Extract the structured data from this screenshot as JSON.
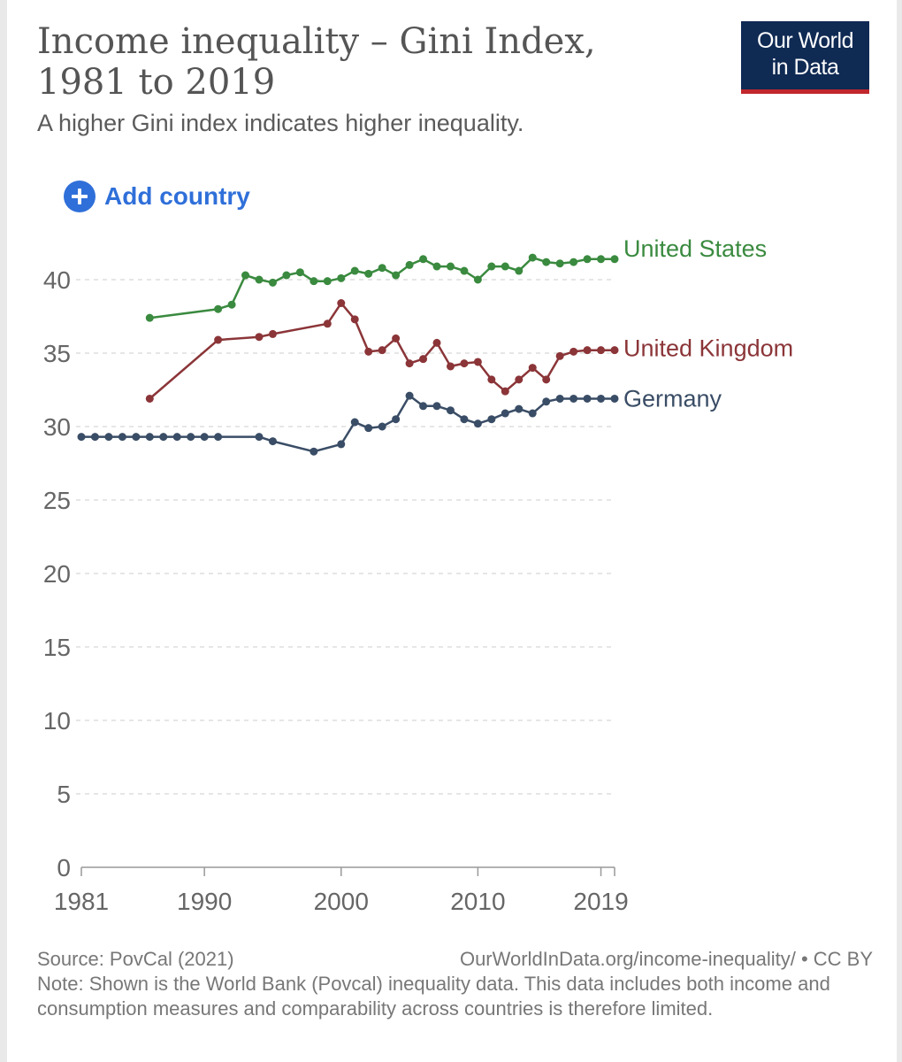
{
  "header": {
    "title": "Income inequality – Gini Index, 1981 to 2019",
    "subtitle": "A higher Gini index indicates higher inequality."
  },
  "logo": {
    "line1": "Our World",
    "line2": "in Data"
  },
  "controls": {
    "add_country_label": "Add country",
    "add_icon": "plus-circle-icon"
  },
  "colors": {
    "United States": "#3a8a3f",
    "United Kingdom": "#8b3538",
    "Germany": "#3a4d66",
    "grid": "#dddddd",
    "axis_text": "#666666",
    "accent": "#2f6fd9"
  },
  "chart_data": {
    "type": "line",
    "title": "Income inequality – Gini Index, 1981 to 2019",
    "xlabel": "",
    "ylabel": "",
    "xlim": [
      1981,
      2020
    ],
    "ylim": [
      0,
      42
    ],
    "yticks": [
      0,
      5,
      10,
      15,
      20,
      25,
      30,
      35,
      40
    ],
    "xticks": [
      1981,
      1990,
      2000,
      2010,
      2019
    ],
    "grid": true,
    "legend": "labels at line ends (right)",
    "series": [
      {
        "name": "United States",
        "x": [
          1986,
          1991,
          1992,
          1993,
          1994,
          1995,
          1996,
          1997,
          1998,
          1999,
          2000,
          2001,
          2002,
          2003,
          2004,
          2005,
          2006,
          2007,
          2008,
          2009,
          2010,
          2011,
          2012,
          2013,
          2014,
          2015,
          2016,
          2017,
          2018,
          2019,
          2020
        ],
        "y": [
          37.4,
          38.0,
          38.3,
          40.3,
          40.0,
          39.8,
          40.3,
          40.5,
          39.9,
          39.9,
          40.1,
          40.6,
          40.4,
          40.8,
          40.3,
          41.0,
          41.4,
          40.9,
          40.9,
          40.6,
          40.0,
          40.9,
          40.9,
          40.6,
          41.5,
          41.2,
          41.1,
          41.2,
          41.4,
          41.4,
          41.4
        ]
      },
      {
        "name": "United Kingdom",
        "x": [
          1986,
          1991,
          1994,
          1995,
          1999,
          2000,
          2001,
          2002,
          2003,
          2004,
          2005,
          2006,
          2007,
          2008,
          2009,
          2010,
          2011,
          2012,
          2013,
          2014,
          2015,
          2016,
          2017,
          2018,
          2019,
          2020
        ],
        "y": [
          31.9,
          35.9,
          36.1,
          36.3,
          37.0,
          38.4,
          37.3,
          35.1,
          35.2,
          36.0,
          34.3,
          34.6,
          35.7,
          34.1,
          34.3,
          34.4,
          33.2,
          32.4,
          33.2,
          34.0,
          33.2,
          34.8,
          35.1,
          35.2,
          35.2,
          35.2
        ]
      },
      {
        "name": "Germany",
        "x": [
          1981,
          1982,
          1983,
          1984,
          1985,
          1986,
          1987,
          1988,
          1989,
          1990,
          1991,
          1994,
          1995,
          1998,
          2000,
          2001,
          2002,
          2003,
          2004,
          2005,
          2006,
          2007,
          2008,
          2009,
          2010,
          2011,
          2012,
          2013,
          2014,
          2015,
          2016,
          2017,
          2018,
          2019,
          2020
        ],
        "y": [
          29.3,
          29.3,
          29.3,
          29.3,
          29.3,
          29.3,
          29.3,
          29.3,
          29.3,
          29.3,
          29.3,
          29.3,
          29.0,
          28.3,
          28.8,
          30.3,
          29.9,
          30.0,
          30.5,
          32.1,
          31.4,
          31.4,
          31.1,
          30.5,
          30.2,
          30.5,
          30.9,
          31.2,
          30.9,
          31.7,
          31.9,
          31.9,
          31.9,
          31.9,
          31.9
        ]
      }
    ]
  },
  "footer": {
    "source": "Source: PovCal (2021)",
    "url_license": "OurWorldInData.org/income-inequality/ • CC BY",
    "note": "Note: Shown is the World Bank (Povcal) inequality data. This data includes both income and consumption measures and comparability across countries is therefore limited."
  }
}
